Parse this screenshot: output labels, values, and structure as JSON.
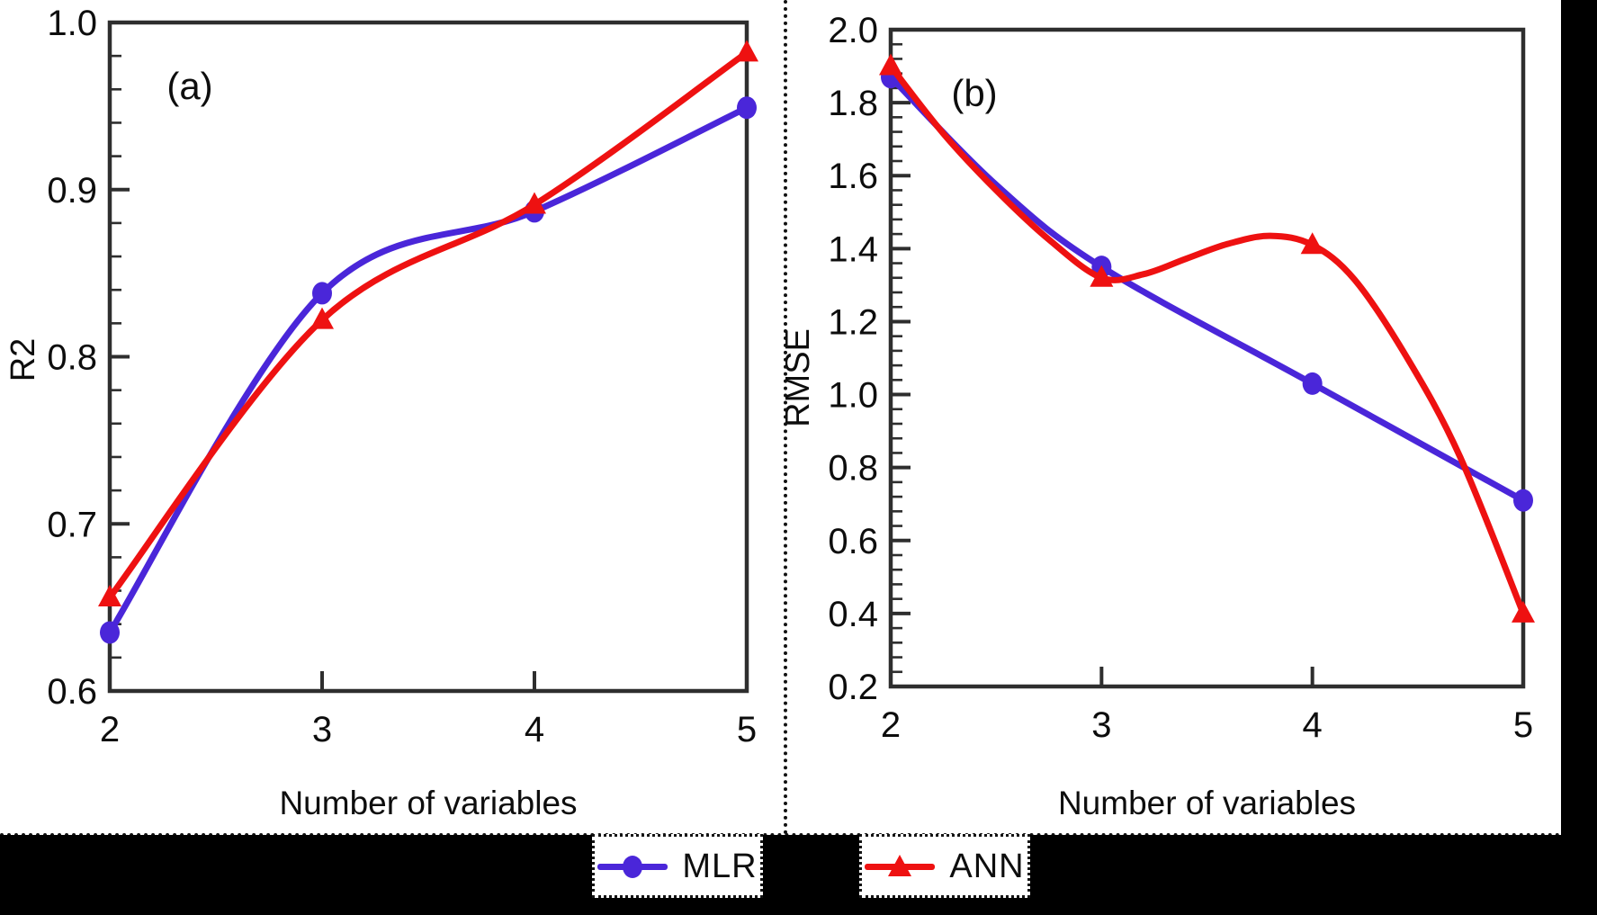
{
  "figure": {
    "background": "#ffffff",
    "frame_color": "#2e2e2e",
    "tick_color": "#2e2e2e",
    "text_color": "#0d0d0d",
    "divider_color": "#111111",
    "bottom_strip_color": "#000000",
    "right_strip_color": "#000000"
  },
  "legend": {
    "items": [
      {
        "label": "MLR",
        "color": "#4a26d9",
        "marker": "circle"
      },
      {
        "label": "ANN",
        "color": "#ee1111",
        "marker": "triangle"
      }
    ]
  },
  "chart_data": [
    {
      "id": "a",
      "type": "line",
      "panel_label": "(a)",
      "xlabel": "Number of variables",
      "ylabel": "R2",
      "xlim": [
        2,
        5
      ],
      "xticks": [
        2,
        3,
        4,
        5
      ],
      "xtick_labels": [
        "2",
        "3",
        "4",
        "5"
      ],
      "ylim": [
        0.6,
        1.0
      ],
      "ymajor_step": 0.1,
      "yminor_step": 0.02,
      "ytick_labels_top_to_bottom": [
        "1.0",
        "0.9",
        "0.8",
        "0.7",
        "0.6"
      ],
      "grid": false,
      "series": [
        {
          "name": "MLR",
          "color": "#4a26d9",
          "marker": "circle",
          "x": [
            2,
            3,
            4,
            5
          ],
          "values": [
            0.635,
            0.838,
            0.887,
            0.949
          ]
        },
        {
          "name": "ANN",
          "color": "#ee1111",
          "marker": "triangle",
          "x": [
            2,
            3,
            4,
            5
          ],
          "values": [
            0.656,
            0.822,
            0.891,
            0.982
          ]
        }
      ]
    },
    {
      "id": "b",
      "type": "line",
      "panel_label": "(b)",
      "xlabel": "Number of variables",
      "ylabel": "RMSE",
      "xlim": [
        2,
        5
      ],
      "xticks": [
        2,
        3,
        4,
        5
      ],
      "xtick_labels": [
        "2",
        "3",
        "4",
        "5"
      ],
      "ylim": [
        0.2,
        2.0
      ],
      "ymajor_step": 0.2,
      "yminor_step": 0.04,
      "ytick_labels_top_to_bottom": [
        "2.0",
        "1.8",
        "1.6",
        "1.4",
        "1.2",
        "1.0",
        "0.8",
        "0.6",
        "0.4",
        "0.2"
      ],
      "grid": false,
      "series": [
        {
          "name": "MLR",
          "color": "#4a26d9",
          "marker": "circle",
          "x": [
            2,
            3,
            4,
            5
          ],
          "values": [
            1.87,
            1.35,
            1.03,
            0.71
          ],
          "curve": {
            "x": [
              2,
              2.5,
              3,
              4,
              5
            ],
            "y": [
              1.87,
              1.575,
              1.35,
              1.03,
              0.71
            ]
          }
        },
        {
          "name": "ANN",
          "color": "#ee1111",
          "marker": "triangle",
          "x": [
            2,
            3,
            4,
            5
          ],
          "values": [
            1.9,
            1.32,
            1.41,
            0.4
          ],
          "curve": {
            "x": [
              2,
              2.25,
              2.5,
              2.75,
              3,
              3.2,
              3.4,
              3.6,
              3.8,
              4,
              4.2,
              4.45,
              4.7,
              5
            ],
            "y": [
              1.9,
              1.715,
              1.56,
              1.425,
              1.32,
              1.33,
              1.372,
              1.413,
              1.435,
              1.41,
              1.315,
              1.1,
              0.83,
              0.4
            ]
          }
        }
      ]
    }
  ]
}
